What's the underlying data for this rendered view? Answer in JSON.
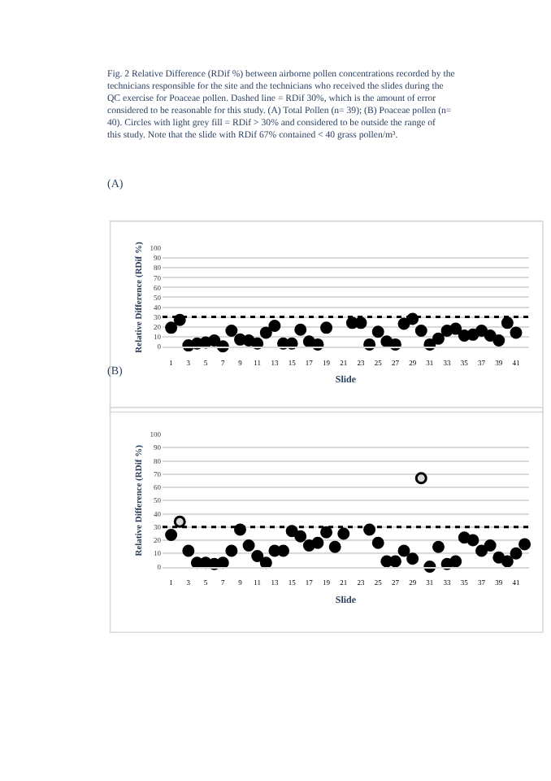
{
  "chart_data": [
    {
      "type": "scatter",
      "title": "(A)",
      "annotations": [
        "Fig. 2 Relative Difference (RDif %) between airborne pollen concentrations recorded by the technicians responsible for the site and the technicians who received the slides during the QC exercise for Poaceae pollen. Dashed line = RDif 30%, which is the amount of error considered to be reasonable for this study. (A) Total Pollen (n= 39); (B) Poaceae pollen (n= 40). Circles with light grey fill = RDif > 30% and considered to be outside the range of this study. Note that the slide with RDif 67% contained < 40 grass pollen/m³."
      ],
      "xlabel": "Slide",
      "ylabel": "Relative Difference (RDif %)",
      "xlim": [
        0,
        42.5
      ],
      "xticks": [
        1,
        3,
        5,
        7,
        9,
        11,
        13,
        15,
        17,
        19,
        21,
        23,
        25,
        27,
        29,
        31,
        33,
        35,
        37,
        39,
        41
      ],
      "ylim": [
        0,
        100
      ],
      "yticks": [
        0,
        10,
        20,
        30,
        40,
        50,
        60,
        70,
        80,
        90,
        100
      ],
      "grid": "y",
      "marker": "circle",
      "ref_lines": [
        {
          "axis": "y",
          "value": 30,
          "color": "#000000",
          "line_style": "dotted"
        }
      ],
      "series": [
        {
          "color": "#000000",
          "x": [
            1,
            2,
            3,
            4,
            5,
            6,
            7,
            8,
            9,
            10,
            11,
            12,
            13,
            14,
            15,
            16,
            17,
            18,
            19,
            22,
            23,
            24,
            25,
            26,
            27,
            28,
            29,
            30,
            31,
            32,
            33,
            34,
            35,
            36,
            37,
            38,
            39,
            40,
            41
          ],
          "values": [
            19,
            27,
            1,
            3,
            4,
            6,
            0,
            16,
            7,
            6,
            3,
            14,
            21,
            3,
            3,
            17,
            5,
            2,
            19,
            24,
            24,
            2,
            15,
            5,
            2,
            23,
            28,
            16,
            2,
            8,
            16,
            18,
            11,
            12,
            16,
            11,
            6,
            24,
            14
          ]
        }
      ]
    },
    {
      "type": "scatter",
      "title": "(B)",
      "xlabel": "Slide",
      "ylabel": "Relative Difference (RDif %)",
      "xlim": [
        0,
        42.5
      ],
      "xticks": [
        1,
        3,
        5,
        7,
        9,
        11,
        13,
        15,
        17,
        19,
        21,
        23,
        25,
        27,
        29,
        31,
        33,
        35,
        37,
        39,
        41
      ],
      "ylim": [
        0,
        100
      ],
      "yticks": [
        0,
        10,
        20,
        30,
        40,
        50,
        60,
        70,
        80,
        90,
        100
      ],
      "grid": "y",
      "marker": "circle",
      "ref_lines": [
        {
          "axis": "y",
          "value": 30,
          "color": "#000000",
          "line_style": "dotted"
        }
      ],
      "series": [
        {
          "color": "#000000",
          "x": [
            1,
            3,
            4,
            5,
            6,
            7,
            8,
            9,
            10,
            11,
            12,
            13,
            14,
            15,
            16,
            17,
            18,
            19,
            20,
            21,
            24,
            25,
            26,
            27,
            28,
            29,
            31,
            32,
            33,
            34,
            35,
            36,
            37,
            38,
            39,
            40,
            41,
            42
          ],
          "values": [
            24,
            12,
            3,
            3,
            2,
            3,
            12,
            28,
            16,
            8,
            3,
            12,
            12,
            27,
            23,
            16,
            18,
            26,
            15,
            25,
            28,
            18,
            4,
            4,
            12,
            6,
            0,
            15,
            2,
            4,
            22,
            20,
            12,
            16,
            7,
            4,
            10,
            17
          ]
        },
        {
          "color": "#d9d9d9",
          "x": [
            2,
            30
          ],
          "values": [
            34,
            67
          ]
        }
      ]
    }
  ]
}
